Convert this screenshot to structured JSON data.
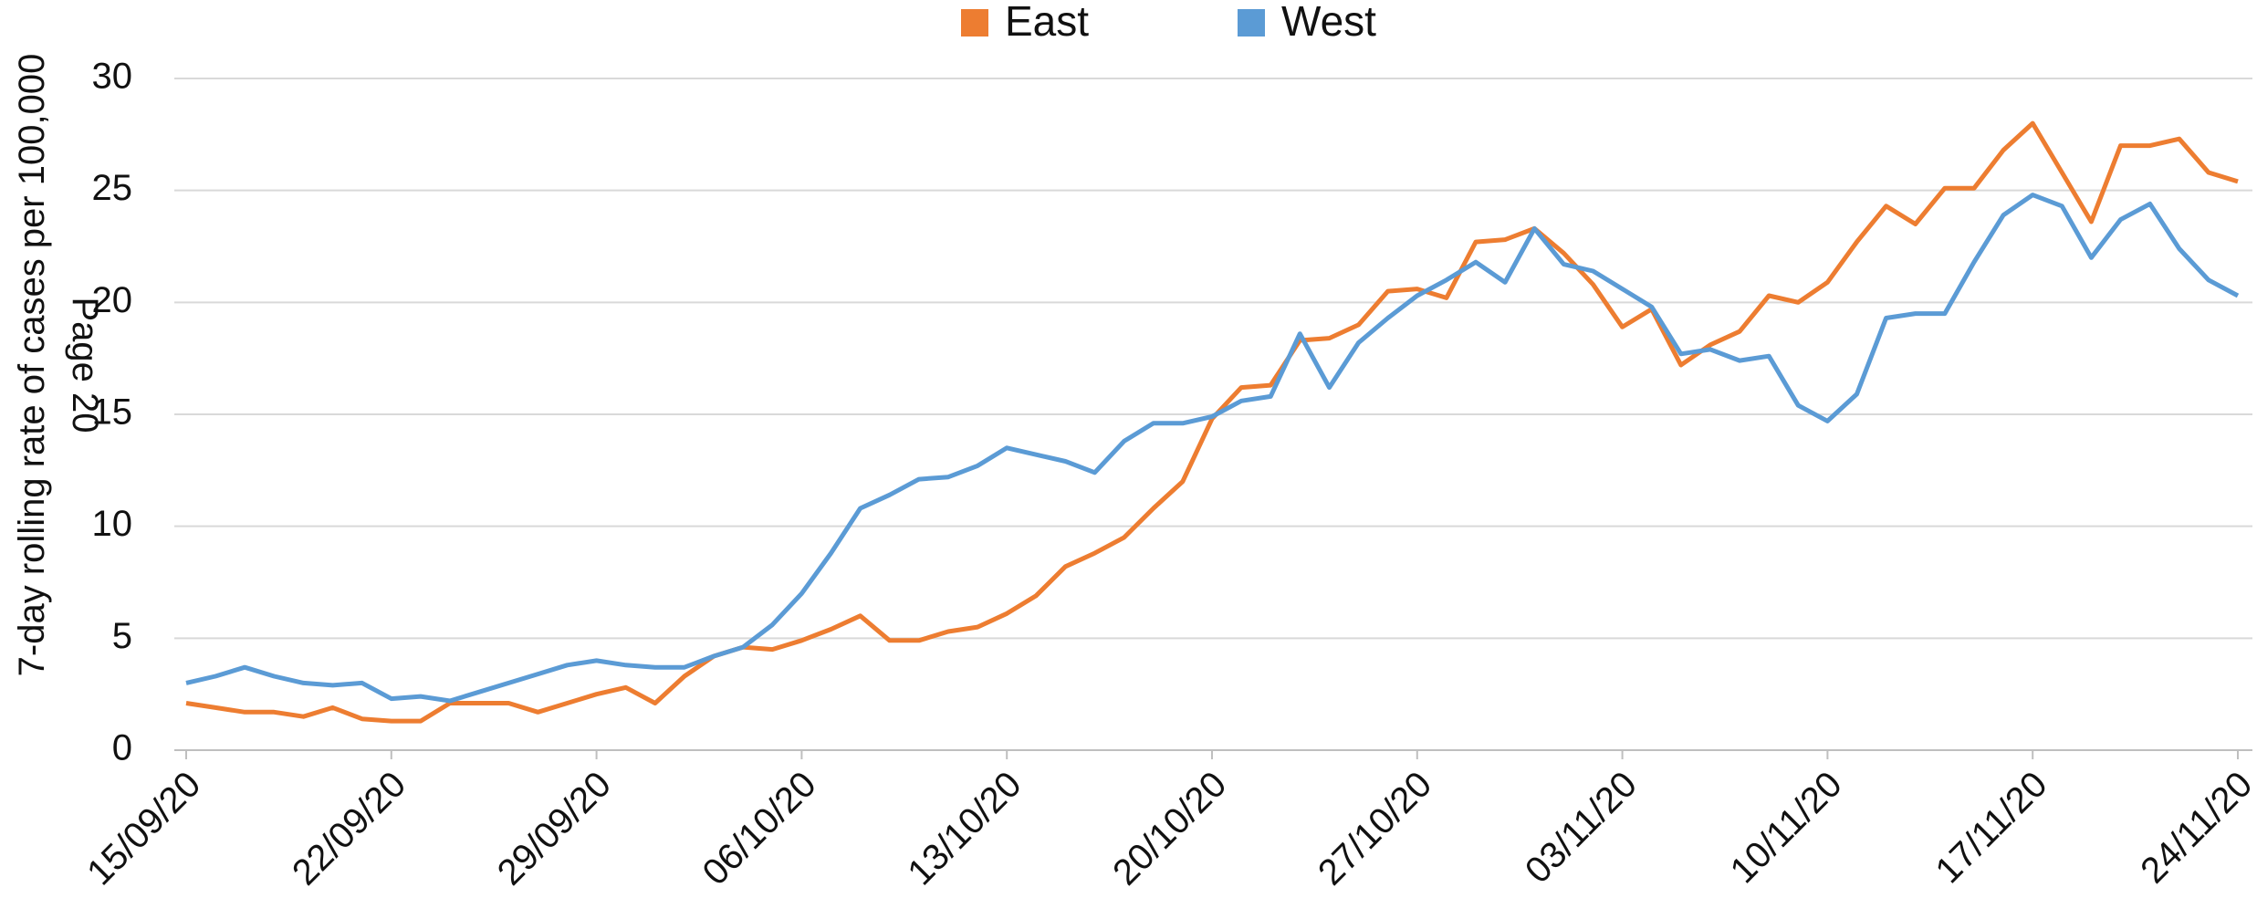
{
  "chart_data": {
    "type": "line",
    "y_label": "7-day rolling rate of cases per 100,000",
    "annotation": "Page 20",
    "categories": [
      "15/09/20",
      null,
      null,
      null,
      null,
      null,
      null,
      "22/09/20",
      null,
      null,
      null,
      null,
      null,
      null,
      "29/09/20",
      null,
      null,
      null,
      null,
      null,
      null,
      "06/10/20",
      null,
      null,
      null,
      null,
      null,
      null,
      "13/10/20",
      null,
      null,
      null,
      null,
      null,
      null,
      "20/10/20",
      null,
      null,
      null,
      null,
      null,
      null,
      "27/10/20",
      null,
      null,
      null,
      null,
      null,
      null,
      "03/11/20",
      null,
      null,
      null,
      null,
      null,
      null,
      "10/11/20",
      null,
      null,
      null,
      null,
      null,
      null,
      "17/11/20",
      null,
      null,
      null,
      null,
      null,
      null,
      "24/11/20"
    ],
    "series": [
      {
        "name": "East",
        "color": "#ed7d31",
        "values": [
          2.1,
          1.9,
          1.7,
          1.7,
          1.5,
          1.9,
          1.4,
          1.3,
          1.3,
          2.1,
          2.1,
          2.1,
          1.7,
          2.1,
          2.5,
          2.8,
          2.1,
          3.3,
          4.2,
          4.6,
          4.5,
          4.9,
          5.4,
          6.0,
          4.9,
          4.9,
          5.3,
          5.5,
          6.1,
          6.9,
          8.2,
          8.8,
          9.5,
          10.8,
          12.0,
          14.8,
          16.2,
          16.3,
          18.3,
          18.4,
          19.0,
          20.5,
          20.6,
          20.2,
          22.7,
          22.8,
          23.3,
          22.2,
          20.8,
          18.9,
          19.7,
          17.2,
          18.1,
          18.7,
          20.3,
          20.0,
          20.9,
          22.7,
          24.3,
          23.5,
          25.1,
          25.1,
          26.8,
          28.0,
          25.8,
          23.6,
          27.0,
          27.0,
          27.3,
          25.8,
          25.4
        ]
      },
      {
        "name": "West",
        "color": "#5b9bd5",
        "values": [
          3.0,
          3.3,
          3.7,
          3.3,
          3.0,
          2.9,
          3.0,
          2.3,
          2.4,
          2.2,
          2.6,
          3.0,
          3.4,
          3.8,
          4.0,
          3.8,
          3.7,
          3.7,
          4.2,
          4.6,
          5.6,
          7.0,
          8.8,
          10.8,
          11.4,
          12.1,
          12.2,
          12.7,
          13.5,
          13.2,
          12.9,
          12.4,
          13.8,
          14.6,
          14.6,
          14.9,
          15.6,
          15.8,
          18.6,
          16.2,
          18.2,
          19.3,
          20.3,
          21.0,
          21.8,
          20.9,
          23.3,
          21.7,
          21.4,
          20.6,
          19.8,
          17.7,
          17.9,
          17.4,
          17.6,
          15.4,
          14.7,
          15.9,
          19.3,
          19.5,
          19.5,
          21.8,
          23.9,
          24.8,
          24.3,
          22.0,
          23.7,
          24.4,
          22.4,
          21.0,
          20.3
        ]
      }
    ],
    "ylim": [
      0,
      30
    ],
    "yticks": [
      0,
      5,
      10,
      15,
      20,
      25,
      30
    ],
    "grid": true,
    "legend": "top"
  }
}
